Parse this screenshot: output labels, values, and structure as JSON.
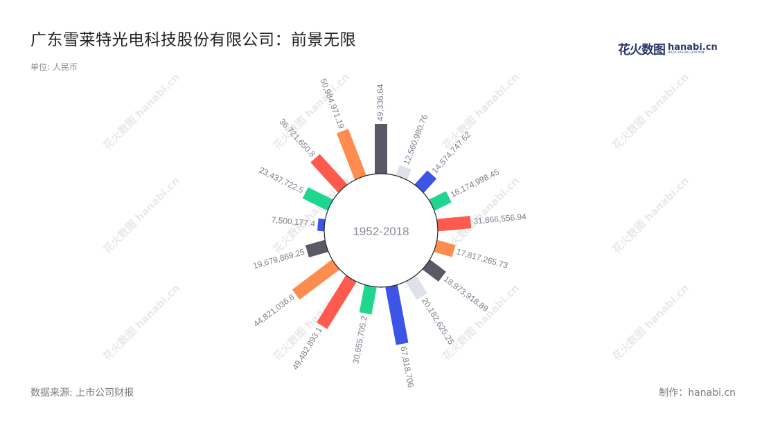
{
  "title": "广东雪莱特光电科技股份有限公司：前景无限",
  "unit": "单位: 人民币",
  "source": "数据来源: 上市公司财报",
  "credit": "制作：hanabi.cn",
  "brand": {
    "mark": "花火数图",
    "name": "hanabi.cn",
    "tagline": "DATA VISUALIZATION"
  },
  "watermark": "花火数图 hanabi.cn",
  "center_label": "1952-2018",
  "chart_data": {
    "type": "bar",
    "layout": "radial",
    "colors": [
      "#5a5a66",
      "#dde1ea",
      "#3d55e6",
      "#1ed68f",
      "#ff5a4e",
      "#ff8c4f"
    ],
    "values": [
      {
        "label": "49,336.64",
        "value": 49336.64
      },
      {
        "label": "12,560,980.76",
        "value": 12560980.76
      },
      {
        "label": "14,574,747.62",
        "value": 14574747.62
      },
      {
        "label": "16,174,998.45",
        "value": 16174998.45
      },
      {
        "label": "31,866,556.94",
        "value": 31866556.94
      },
      {
        "label": "17,817,265.73",
        "value": 17817265.73
      },
      {
        "label": "18,973,918.89",
        "value": 18973918.89
      },
      {
        "label": "20,182,625.25",
        "value": 20182625.25
      },
      {
        "label": "67,818,706",
        "value": 67818706
      },
      {
        "label": "30,655,705.2",
        "value": 30655705.2
      },
      {
        "label": "49,482,893.1",
        "value": 49482893.1
      },
      {
        "label": "44,821,036.8",
        "value": 44821036.8
      },
      {
        "label": "19,679,869.25",
        "value": 19679869.25
      },
      {
        "label": "7,500,177.4",
        "value": 7500177.4
      },
      {
        "label": "23,437,722.5",
        "value": 23437722.5
      },
      {
        "label": "36,721,650.8",
        "value": 36721650.8
      },
      {
        "label": "50,984,971.19",
        "value": 50984971.19
      }
    ],
    "bar_heights": [
      0.45,
      0.1,
      0.17,
      0.17,
      0.3,
      0.17,
      0.18,
      0.19,
      0.53,
      0.25,
      0.5,
      0.45,
      0.18,
      0.06,
      0.25,
      0.37,
      0.45
    ],
    "color_index": [
      0,
      1,
      2,
      3,
      4,
      5,
      0,
      1,
      2,
      3,
      4,
      5,
      0,
      2,
      3,
      4,
      5
    ]
  }
}
